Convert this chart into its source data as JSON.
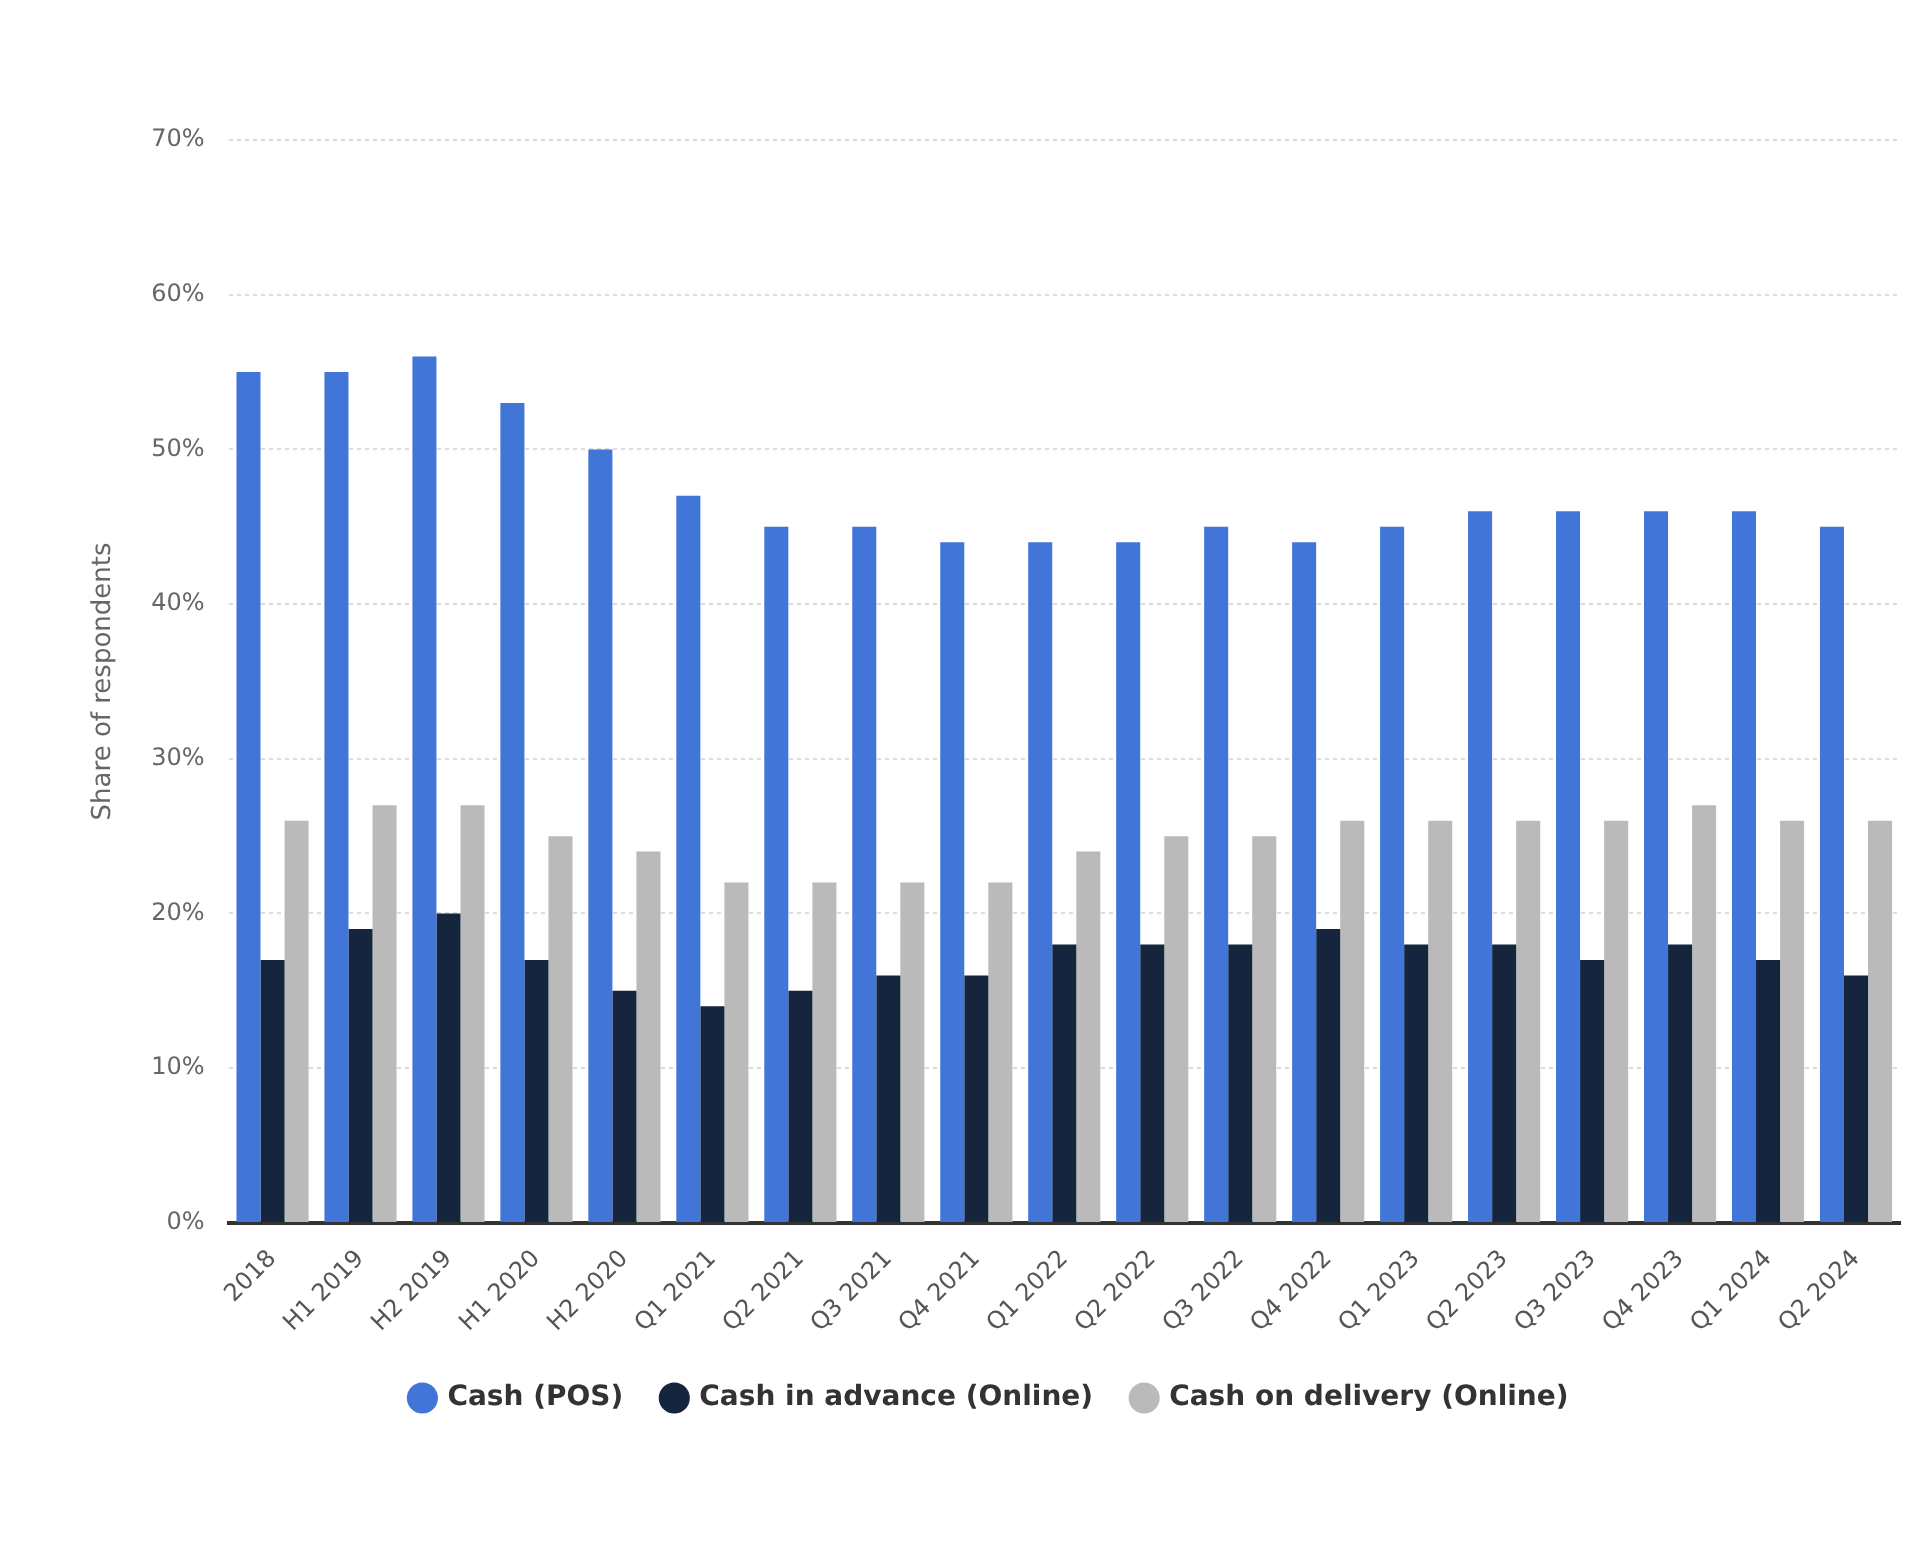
{
  "chart_data": {
    "type": "bar",
    "ylabel": "Share of respondents",
    "categories": [
      "2018",
      "H1 2019",
      "H2 2019",
      "H1 2020",
      "H2 2020",
      "Q1 2021",
      "Q2 2021",
      "Q3 2021",
      "Q4 2021",
      "Q1 2022",
      "Q2 2022",
      "Q3 2022",
      "Q4 2022",
      "Q1 2023",
      "Q2 2023",
      "Q3 2023",
      "Q4 2023",
      "Q1 2024",
      "Q2 2024"
    ],
    "series": [
      {
        "name": "Cash (POS)",
        "color": "#4175d8",
        "values": [
          55,
          55,
          56,
          53,
          50,
          47,
          45,
          45,
          44,
          44,
          44,
          45,
          44,
          45,
          46,
          46,
          46,
          46,
          45
        ]
      },
      {
        "name": "Cash in advance (Online)",
        "color": "#14253d",
        "values": [
          17,
          19,
          20,
          17,
          15,
          14,
          15,
          16,
          16,
          18,
          18,
          18,
          19,
          18,
          18,
          17,
          18,
          17,
          16
        ]
      },
      {
        "name": "Cash on delivery (Online)",
        "color": "#bababa",
        "values": [
          26,
          27,
          27,
          25,
          24,
          22,
          22,
          22,
          22,
          24,
          25,
          25,
          26,
          26,
          26,
          26,
          27,
          26,
          26
        ]
      }
    ],
    "ylim": [
      0,
      70
    ],
    "yticks": [
      {
        "value": 0,
        "label": "0%"
      },
      {
        "value": 10,
        "label": "10%"
      },
      {
        "value": 20,
        "label": "20%"
      },
      {
        "value": 30,
        "label": "30%"
      },
      {
        "value": 40,
        "label": "40%"
      },
      {
        "value": 50,
        "label": "50%"
      },
      {
        "value": 60,
        "label": "60%"
      },
      {
        "value": 70,
        "label": "70%"
      }
    ],
    "grid": "y",
    "legend": "bottom"
  }
}
